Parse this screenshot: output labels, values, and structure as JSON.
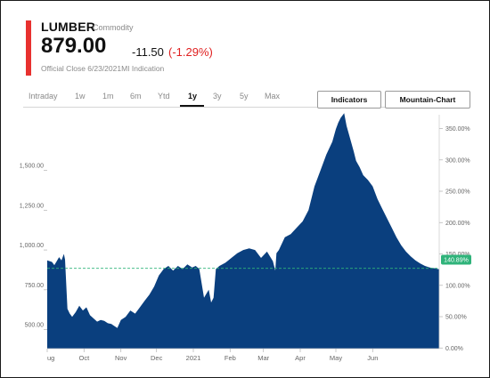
{
  "header": {
    "symbol": "LUMBER",
    "asset_type": "Commodity",
    "price": "879.00",
    "change": "-11.50",
    "change_pct": "(-1.29%)",
    "close_note": "Official Close 6/23/2021MI Indication"
  },
  "range_tabs": [
    {
      "label": "Intraday",
      "active": false
    },
    {
      "label": "1w",
      "active": false
    },
    {
      "label": "1m",
      "active": false
    },
    {
      "label": "6m",
      "active": false
    },
    {
      "label": "Ytd",
      "active": false
    },
    {
      "label": "1y",
      "active": true
    },
    {
      "label": "3y",
      "active": false
    },
    {
      "label": "5y",
      "active": false
    },
    {
      "label": "Max",
      "active": false
    }
  ],
  "buttons": {
    "indicators": "Indicators",
    "chart_type": "Mountain-Chart"
  },
  "colors": {
    "accent": "#e8312f",
    "negative": "#e02020",
    "area_fill": "#0a3f7e",
    "reference_line": "#2fb37a",
    "badge": "#2fb37a"
  },
  "chart_data": {
    "type": "area",
    "title": "",
    "xlabel": "",
    "ylabel": "",
    "ylim": [
      380,
      1850
    ],
    "y2lim": [
      -0.01,
      3.72
    ],
    "reference_value": 885,
    "last_pct_label": "140.89%",
    "last_pct_value": 1.4089,
    "y_ticks_left": [
      {
        "value": 500,
        "label": "500.00"
      },
      {
        "value": 750,
        "label": "750.00"
      },
      {
        "value": 1000,
        "label": "1,000.00"
      },
      {
        "value": 1250,
        "label": "1,250.00"
      },
      {
        "value": 1500,
        "label": "1,500.00"
      }
    ],
    "y_ticks_right": [
      {
        "value": 0.0,
        "label": "0.00%"
      },
      {
        "value": 0.5,
        "label": "50.00%"
      },
      {
        "value": 1.0,
        "label": "100.00%"
      },
      {
        "value": 1.5,
        "label": "150.00%"
      },
      {
        "value": 2.0,
        "label": "200.00%"
      },
      {
        "value": 2.5,
        "label": "250.00%"
      },
      {
        "value": 3.0,
        "label": "300.00%"
      },
      {
        "value": 3.5,
        "label": "350.00%"
      }
    ],
    "x_range": [
      0,
      330
    ],
    "x_ticks": [
      {
        "pos": 0,
        "label": "ug"
      },
      {
        "pos": 31,
        "label": "Oct"
      },
      {
        "pos": 62,
        "label": "Nov"
      },
      {
        "pos": 92,
        "label": "Dec"
      },
      {
        "pos": 123,
        "label": "2021"
      },
      {
        "pos": 154,
        "label": "Feb"
      },
      {
        "pos": 182,
        "label": "Mar"
      },
      {
        "pos": 213,
        "label": "Apr"
      },
      {
        "pos": 243,
        "label": "May"
      },
      {
        "pos": 274,
        "label": "Jun"
      }
    ],
    "x": [
      0,
      2,
      4,
      6,
      8,
      10,
      12,
      14,
      15,
      17,
      19,
      21,
      24,
      27,
      30,
      33,
      36,
      39,
      42,
      45,
      48,
      51,
      54,
      57,
      59,
      62,
      66,
      70,
      74,
      78,
      82,
      86,
      90,
      94,
      98,
      102,
      106,
      110,
      114,
      118,
      122,
      125,
      128,
      132,
      136,
      138,
      140,
      142,
      145,
      150,
      155,
      160,
      165,
      170,
      175,
      180,
      185,
      190,
      192,
      193,
      195,
      200,
      205,
      210,
      215,
      220,
      225,
      230,
      235,
      240,
      243,
      245,
      247,
      250,
      252,
      255,
      258,
      260,
      263,
      266,
      270,
      274,
      278,
      282,
      286,
      290,
      294,
      298,
      302,
      306,
      310,
      314,
      318,
      322,
      326,
      330
    ],
    "values": [
      935,
      930,
      925,
      905,
      930,
      955,
      935,
      975,
      940,
      630,
      600,
      580,
      610,
      650,
      620,
      640,
      590,
      570,
      550,
      560,
      555,
      540,
      535,
      520,
      510,
      560,
      580,
      620,
      600,
      640,
      680,
      720,
      770,
      840,
      880,
      900,
      870,
      900,
      880,
      910,
      890,
      900,
      880,
      700,
      750,
      670,
      700,
      880,
      900,
      920,
      950,
      980,
      1000,
      1010,
      1000,
      950,
      990,
      930,
      870,
      980,
      1000,
      1080,
      1100,
      1140,
      1180,
      1250,
      1400,
      1500,
      1600,
      1680,
      1760,
      1800,
      1830,
      1860,
      1780,
      1700,
      1620,
      1560,
      1520,
      1470,
      1440,
      1400,
      1320,
      1260,
      1200,
      1140,
      1080,
      1030,
      990,
      960,
      935,
      915,
      900,
      890,
      885,
      879
    ]
  }
}
